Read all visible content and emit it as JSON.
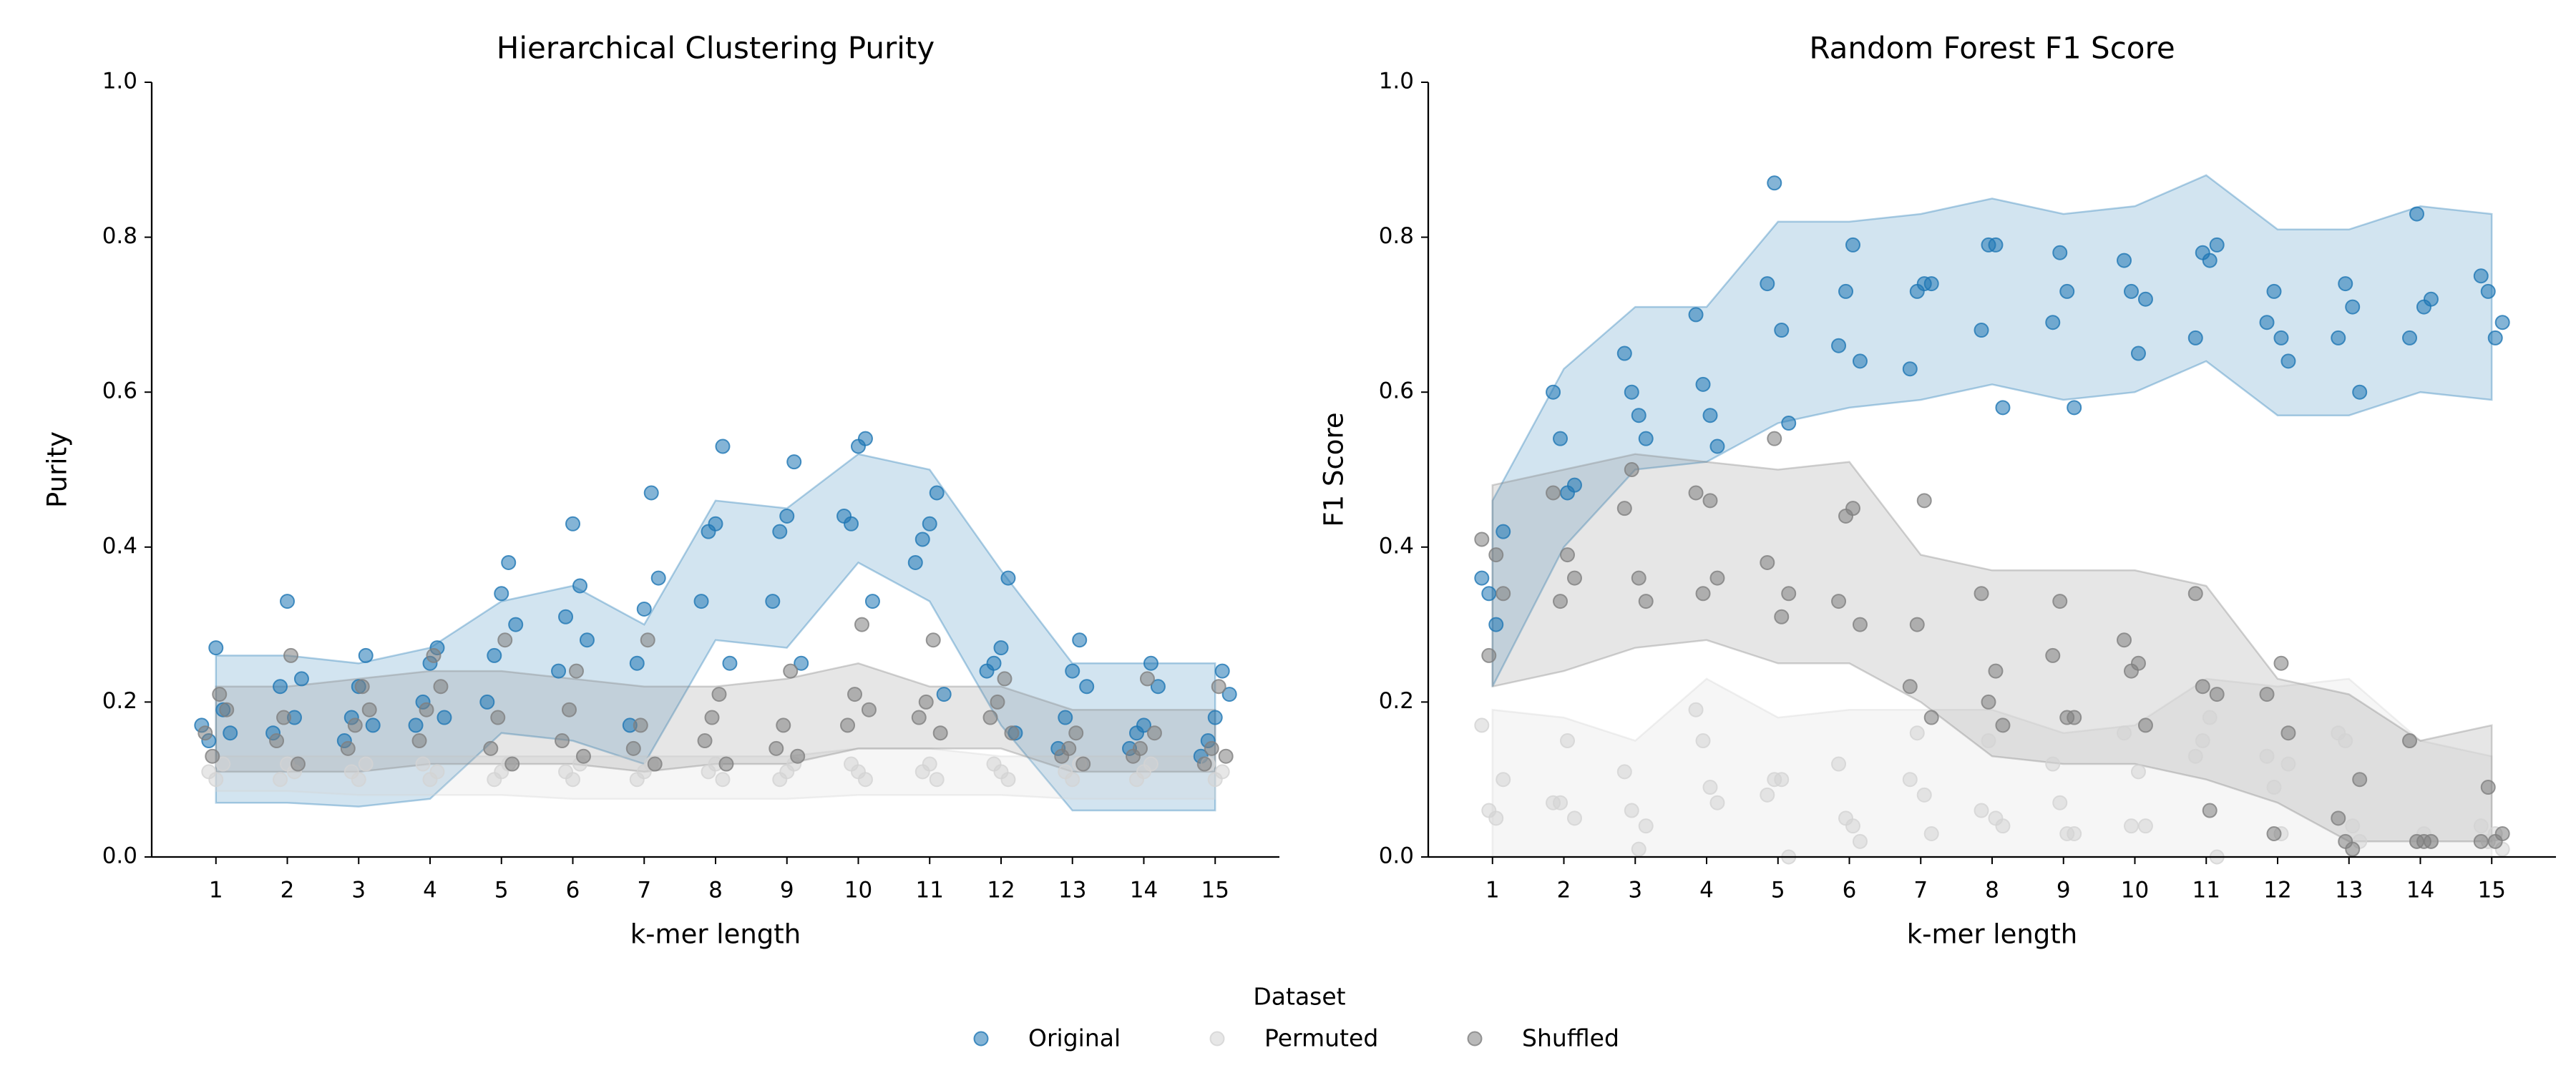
{
  "chart_data": [
    {
      "type": "scatter",
      "title": "Hierarchical Clustering Purity",
      "xlabel": "k-mer length",
      "ylabel": "Purity",
      "xlim": [
        0.1,
        15.9
      ],
      "ylim": [
        0,
        1
      ],
      "xticks": [
        1,
        2,
        3,
        4,
        5,
        6,
        7,
        8,
        9,
        10,
        11,
        12,
        13,
        14,
        15
      ],
      "yticks": [
        {
          "value": 0,
          "label": "0.0"
        },
        0.2,
        0.4,
        0.6,
        0.8,
        {
          "value": 1,
          "label": "1.0"
        }
      ],
      "band_x": [
        1,
        2,
        3,
        4,
        5,
        6,
        7,
        8,
        9,
        10,
        11,
        12,
        13,
        14,
        15
      ],
      "series": [
        {
          "name": "Original",
          "color": "#1f77b4",
          "x": [
            0.8,
            0.9,
            1,
            1.1,
            1.2,
            1.8,
            1.9,
            2,
            2.1,
            2.2,
            2.8,
            2.9,
            3,
            3.1,
            3.2,
            3.8,
            3.9,
            4,
            4.1,
            4.2,
            4.8,
            4.9,
            5,
            5.1,
            5.2,
            5.8,
            5.9,
            6,
            6.1,
            6.2,
            6.8,
            6.9,
            7,
            7.1,
            7.2,
            7.8,
            7.9,
            8,
            8.1,
            8.2,
            8.8,
            8.9,
            9,
            9.1,
            9.2,
            9.8,
            9.9,
            10,
            10.1,
            10.2,
            10.8,
            10.9,
            11,
            11.1,
            11.2,
            11.8,
            11.9,
            12,
            12.1,
            12.2,
            12.8,
            12.9,
            13,
            13.1,
            13.2,
            13.8,
            13.9,
            14,
            14.1,
            14.2,
            14.8,
            14.9,
            15,
            15.1,
            15.2
          ],
          "y": [
            0.17,
            0.15,
            0.27,
            0.19,
            0.16,
            0.16,
            0.22,
            0.33,
            0.18,
            0.23,
            0.15,
            0.18,
            0.22,
            0.26,
            0.17,
            0.17,
            0.2,
            0.25,
            0.27,
            0.18,
            0.2,
            0.26,
            0.34,
            0.38,
            0.3,
            0.24,
            0.31,
            0.43,
            0.35,
            0.28,
            0.17,
            0.25,
            0.32,
            0.47,
            0.36,
            0.33,
            0.42,
            0.43,
            0.53,
            0.25,
            0.33,
            0.42,
            0.44,
            0.51,
            0.25,
            0.44,
            0.43,
            0.53,
            0.54,
            0.33,
            0.38,
            0.41,
            0.43,
            0.47,
            0.21,
            0.24,
            0.25,
            0.27,
            0.36,
            0.16,
            0.14,
            0.18,
            0.24,
            0.28,
            0.22,
            0.14,
            0.16,
            0.17,
            0.25,
            0.22,
            0.13,
            0.15,
            0.18,
            0.24,
            0.21
          ],
          "band_upper": [
            0.26,
            0.26,
            0.25,
            0.27,
            0.33,
            0.35,
            0.3,
            0.46,
            0.45,
            0.52,
            0.5,
            0.37,
            0.25,
            0.25,
            0.25
          ],
          "band_lower": [
            0.07,
            0.07,
            0.065,
            0.075,
            0.16,
            0.15,
            0.12,
            0.28,
            0.27,
            0.38,
            0.33,
            0.17,
            0.06,
            0.06,
            0.06
          ]
        },
        {
          "name": "Permuted",
          "color": "#d3d3d3",
          "x": [
            0.9,
            1,
            1.1,
            1.9,
            2,
            2.1,
            2.9,
            3,
            3.1,
            3.9,
            4,
            4.1,
            4.9,
            5,
            5.1,
            5.9,
            6,
            6.1,
            6.9,
            7,
            7.1,
            7.9,
            8,
            8.1,
            8.9,
            9,
            9.1,
            9.9,
            10,
            10.1,
            10.9,
            11,
            11.1,
            11.9,
            12,
            12.1,
            12.9,
            13,
            13.1,
            13.9,
            14,
            14.1,
            14.9,
            15,
            15.1
          ],
          "y": [
            0.11,
            0.1,
            0.12,
            0.1,
            0.12,
            0.11,
            0.11,
            0.1,
            0.12,
            0.12,
            0.1,
            0.11,
            0.1,
            0.11,
            0.12,
            0.11,
            0.1,
            0.12,
            0.1,
            0.11,
            0.12,
            0.11,
            0.12,
            0.1,
            0.1,
            0.11,
            0.12,
            0.12,
            0.11,
            0.1,
            0.11,
            0.12,
            0.1,
            0.12,
            0.11,
            0.1,
            0.11,
            0.1,
            0.12,
            0.1,
            0.11,
            0.12,
            0.12,
            0.1,
            0.11
          ],
          "band_upper": [
            0.13,
            0.13,
            0.13,
            0.13,
            0.13,
            0.13,
            0.13,
            0.13,
            0.13,
            0.14,
            0.14,
            0.13,
            0.13,
            0.13,
            0.13
          ],
          "band_lower": [
            0.085,
            0.085,
            0.08,
            0.08,
            0.08,
            0.075,
            0.075,
            0.075,
            0.075,
            0.08,
            0.08,
            0.08,
            0.075,
            0.075,
            0.075
          ]
        },
        {
          "name": "Shuffled",
          "color": "#808080",
          "x": [
            0.85,
            0.95,
            1.05,
            1.15,
            1.85,
            1.95,
            2.05,
            2.15,
            2.85,
            2.95,
            3.05,
            3.15,
            3.85,
            3.95,
            4.05,
            4.15,
            4.85,
            4.95,
            5.05,
            5.15,
            5.85,
            5.95,
            6.05,
            6.15,
            6.85,
            6.95,
            7.05,
            7.15,
            7.85,
            7.95,
            8.05,
            8.15,
            8.85,
            8.95,
            9.05,
            9.15,
            9.85,
            9.95,
            10.05,
            10.15,
            10.85,
            10.95,
            11.05,
            11.15,
            11.85,
            11.95,
            12.05,
            12.15,
            12.85,
            12.95,
            13.05,
            13.15,
            13.85,
            13.95,
            14.05,
            14.15,
            14.85,
            14.95,
            15.05,
            15.15
          ],
          "y": [
            0.16,
            0.13,
            0.21,
            0.19,
            0.15,
            0.18,
            0.26,
            0.12,
            0.14,
            0.17,
            0.22,
            0.19,
            0.15,
            0.19,
            0.26,
            0.22,
            0.14,
            0.18,
            0.28,
            0.12,
            0.15,
            0.19,
            0.24,
            0.13,
            0.14,
            0.17,
            0.28,
            0.12,
            0.15,
            0.18,
            0.21,
            0.12,
            0.14,
            0.17,
            0.24,
            0.13,
            0.17,
            0.21,
            0.3,
            0.19,
            0.18,
            0.2,
            0.28,
            0.16,
            0.18,
            0.2,
            0.23,
            0.16,
            0.13,
            0.14,
            0.16,
            0.12,
            0.13,
            0.14,
            0.23,
            0.16,
            0.12,
            0.14,
            0.22,
            0.13
          ],
          "band_upper": [
            0.22,
            0.22,
            0.23,
            0.24,
            0.24,
            0.23,
            0.22,
            0.22,
            0.23,
            0.25,
            0.22,
            0.22,
            0.19,
            0.19,
            0.19
          ],
          "band_lower": [
            0.11,
            0.11,
            0.11,
            0.12,
            0.12,
            0.12,
            0.11,
            0.12,
            0.12,
            0.14,
            0.14,
            0.14,
            0.11,
            0.11,
            0.11
          ]
        }
      ]
    },
    {
      "type": "scatter",
      "title": "Random Forest F1 Score",
      "xlabel": "k-mer length",
      "ylabel": "F1 Score",
      "xlim": [
        0.1,
        15.9
      ],
      "ylim": [
        0,
        1
      ],
      "xticks": [
        1,
        2,
        3,
        4,
        5,
        6,
        7,
        8,
        9,
        10,
        11,
        12,
        13,
        14,
        15
      ],
      "yticks": [
        {
          "value": 0,
          "label": "0.0"
        },
        0.2,
        0.4,
        0.6,
        0.8,
        {
          "value": 1,
          "label": "1.0"
        }
      ],
      "band_x": [
        1,
        2,
        3,
        4,
        5,
        6,
        7,
        8,
        9,
        10,
        11,
        12,
        13,
        14,
        15
      ],
      "series": [
        {
          "name": "Original",
          "color": "#1f77b4",
          "x": [
            0.85,
            0.95,
            1.05,
            1.15,
            1.85,
            1.95,
            2.05,
            2.15,
            2.85,
            2.95,
            3.05,
            3.15,
            3.85,
            3.95,
            4.05,
            4.15,
            4.85,
            4.95,
            5.05,
            5.15,
            5.85,
            5.95,
            6.05,
            6.15,
            6.85,
            6.95,
            7.05,
            7.15,
            7.85,
            7.95,
            8.05,
            8.15,
            8.85,
            8.95,
            9.05,
            9.15,
            9.85,
            9.95,
            10.05,
            10.15,
            10.85,
            10.95,
            11.05,
            11.15,
            11.85,
            11.95,
            12.05,
            12.15,
            12.85,
            12.95,
            13.05,
            13.15,
            13.85,
            13.95,
            14.05,
            14.15,
            14.85,
            14.95,
            15.05,
            15.15
          ],
          "y": [
            0.36,
            0.34,
            0.3,
            0.42,
            0.6,
            0.54,
            0.47,
            0.48,
            0.65,
            0.6,
            0.57,
            0.54,
            0.7,
            0.61,
            0.57,
            0.53,
            0.74,
            0.87,
            0.68,
            0.56,
            0.66,
            0.73,
            0.79,
            0.64,
            0.63,
            0.73,
            0.74,
            0.74,
            0.68,
            0.79,
            0.79,
            0.58,
            0.69,
            0.78,
            0.73,
            0.58,
            0.77,
            0.73,
            0.65,
            0.72,
            0.67,
            0.78,
            0.77,
            0.79,
            0.69,
            0.73,
            0.67,
            0.64,
            0.67,
            0.74,
            0.71,
            0.6,
            0.67,
            0.83,
            0.71,
            0.72,
            0.75,
            0.73,
            0.67,
            0.69
          ],
          "band_upper": [
            0.46,
            0.63,
            0.71,
            0.71,
            0.82,
            0.82,
            0.83,
            0.85,
            0.83,
            0.84,
            0.88,
            0.81,
            0.81,
            0.84,
            0.83
          ],
          "band_lower": [
            0.22,
            0.4,
            0.5,
            0.51,
            0.56,
            0.58,
            0.59,
            0.61,
            0.59,
            0.6,
            0.64,
            0.57,
            0.57,
            0.6,
            0.59
          ]
        },
        {
          "name": "Permuted",
          "color": "#d3d3d3",
          "x": [
            0.85,
            0.95,
            1.05,
            1.15,
            1.85,
            1.95,
            2.05,
            2.15,
            2.85,
            2.95,
            3.05,
            3.15,
            3.85,
            3.95,
            4.05,
            4.15,
            4.85,
            4.95,
            5.05,
            5.15,
            5.85,
            5.95,
            6.05,
            6.15,
            6.85,
            6.95,
            7.05,
            7.15,
            7.85,
            7.95,
            8.05,
            8.15,
            8.85,
            8.95,
            9.05,
            9.15,
            9.85,
            9.95,
            10.05,
            10.15,
            10.85,
            10.95,
            11.05,
            11.15,
            11.85,
            11.95,
            12.05,
            12.15,
            12.85,
            12.95,
            13.05,
            13.15,
            13.85,
            13.95,
            14.05,
            14.15,
            14.85,
            14.95,
            15.05,
            15.15
          ],
          "y": [
            0.17,
            0.06,
            0.05,
            0.1,
            0.07,
            0.07,
            0.15,
            0.05,
            0.11,
            0.06,
            0.01,
            0.04,
            0.19,
            0.15,
            0.09,
            0.07,
            0.08,
            0.1,
            0.1,
            0,
            0.12,
            0.05,
            0.04,
            0.02,
            0.1,
            0.16,
            0.08,
            0.03,
            0.06,
            0.15,
            0.05,
            0.04,
            0.12,
            0.07,
            0.03,
            0.03,
            0.16,
            0.04,
            0.11,
            0.04,
            0.13,
            0.15,
            0.18,
            0,
            0.13,
            0.09,
            0.03,
            0.12,
            0.16,
            0.15,
            0.04,
            0.02,
            0.15,
            0.02,
            0.03,
            0.02,
            0.04,
            0.02,
            0.03,
            0.01
          ],
          "band_upper": [
            0.19,
            0.18,
            0.15,
            0.23,
            0.18,
            0.19,
            0.19,
            0.19,
            0.16,
            0.17,
            0.23,
            0.22,
            0.23,
            0.15,
            0.13
          ],
          "band_lower": [
            0,
            0,
            0,
            0,
            0,
            0,
            0,
            0,
            0,
            0,
            0,
            0,
            0,
            0,
            0
          ]
        },
        {
          "name": "Shuffled",
          "color": "#808080",
          "x": [
            0.85,
            0.95,
            1.05,
            1.15,
            1.85,
            1.95,
            2.05,
            2.15,
            2.85,
            2.95,
            3.05,
            3.15,
            3.85,
            3.95,
            4.05,
            4.15,
            4.85,
            4.95,
            5.05,
            5.15,
            5.85,
            5.95,
            6.05,
            6.15,
            6.85,
            6.95,
            7.05,
            7.15,
            7.85,
            7.95,
            8.05,
            8.15,
            8.85,
            8.95,
            9.05,
            9.15,
            9.85,
            9.95,
            10.05,
            10.15,
            10.85,
            10.95,
            11.05,
            11.15,
            11.85,
            11.95,
            12.05,
            12.15,
            12.85,
            12.95,
            13.05,
            13.15,
            13.85,
            13.95,
            14.05,
            14.15,
            14.85,
            14.95,
            15.05,
            15.15
          ],
          "y": [
            0.41,
            0.26,
            0.39,
            0.34,
            0.47,
            0.33,
            0.39,
            0.36,
            0.45,
            0.5,
            0.36,
            0.33,
            0.47,
            0.34,
            0.46,
            0.36,
            0.38,
            0.54,
            0.31,
            0.34,
            0.33,
            0.44,
            0.45,
            0.3,
            0.22,
            0.3,
            0.46,
            0.18,
            0.34,
            0.2,
            0.24,
            0.17,
            0.26,
            0.33,
            0.18,
            0.18,
            0.28,
            0.24,
            0.25,
            0.17,
            0.34,
            0.22,
            0.06,
            0.21,
            0.21,
            0.03,
            0.25,
            0.16,
            0.05,
            0.02,
            0.01,
            0.1,
            0.15,
            0.02,
            0.02,
            0.02,
            0.02,
            0.09,
            0.02,
            0.03
          ],
          "band_upper": [
            0.48,
            0.5,
            0.52,
            0.51,
            0.5,
            0.51,
            0.39,
            0.37,
            0.37,
            0.37,
            0.35,
            0.23,
            0.21,
            0.15,
            0.17
          ],
          "band_lower": [
            0.22,
            0.24,
            0.27,
            0.28,
            0.25,
            0.25,
            0.2,
            0.13,
            0.12,
            0.12,
            0.1,
            0.07,
            0.02,
            0.02,
            0.02
          ]
        }
      ]
    }
  ],
  "legend": {
    "title": "Dataset"
  }
}
